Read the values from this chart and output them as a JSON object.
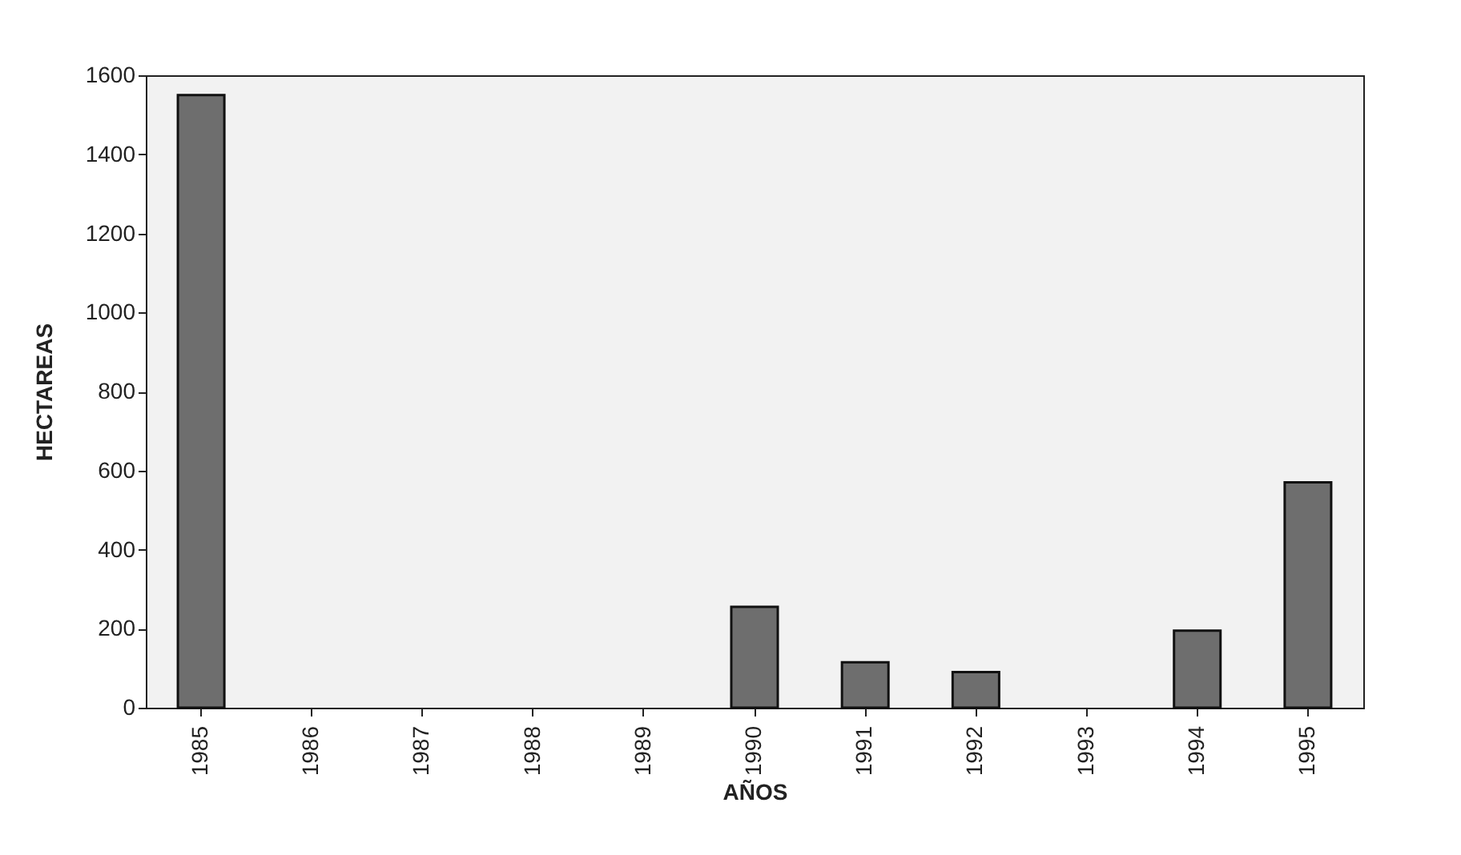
{
  "chart_data": {
    "type": "bar",
    "xlabel": "AÑOS",
    "ylabel": "HECTAREAS",
    "categories": [
      "1985",
      "1986",
      "1987",
      "1988",
      "1989",
      "1990",
      "1991",
      "1992",
      "1993",
      "1994",
      "1995"
    ],
    "values": [
      1550,
      0,
      0,
      0,
      0,
      255,
      115,
      90,
      0,
      195,
      570
    ],
    "color": "#6e6e6e",
    "ylim": [
      0,
      1600
    ],
    "yticks": [
      0,
      200,
      400,
      600,
      800,
      1000,
      1200,
      1400,
      1600
    ],
    "grid": false
  }
}
